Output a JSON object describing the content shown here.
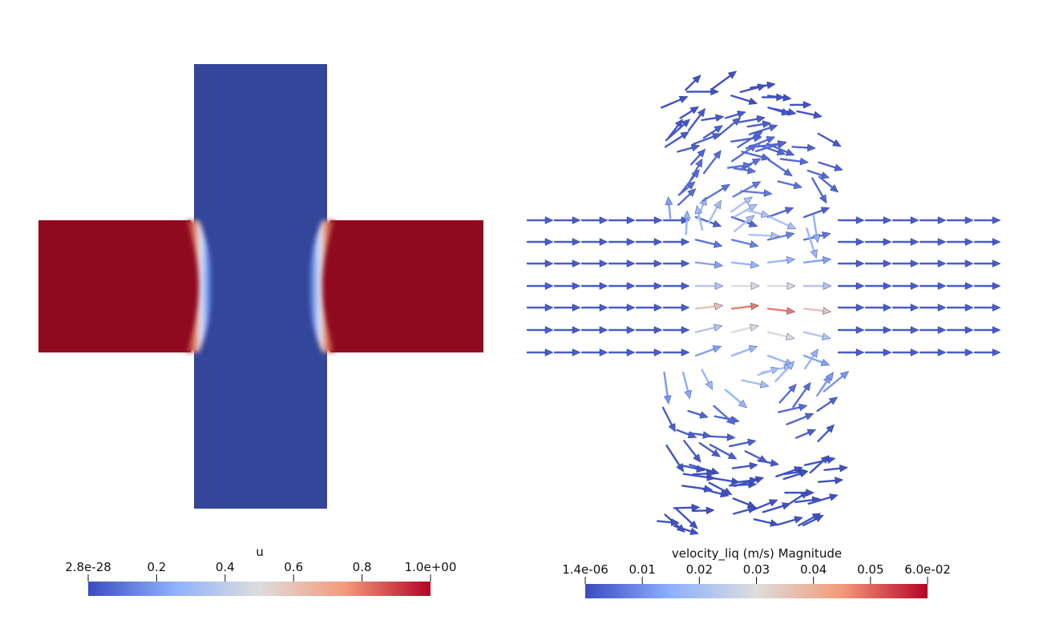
{
  "left_panel": {
    "colorbar": {
      "title": "u",
      "ticks": [
        "2.8e-28",
        "0.2",
        "0.4",
        "0.6",
        "0.8",
        "1.0e+00"
      ],
      "tick_values": [
        0,
        0.2,
        0.4,
        0.6,
        0.8,
        1.0
      ]
    }
  },
  "right_panel": {
    "colorbar": {
      "title": "velocity_liq (m/s) Magnitude",
      "ticks": [
        "1.4e-06",
        "0.01",
        "0.02",
        "0.03",
        "0.04",
        "0.05",
        "6.0e-02"
      ],
      "tick_values": [
        0,
        0.01,
        0.02,
        0.03,
        0.04,
        0.05,
        0.06
      ]
    }
  },
  "colormap": {
    "name": "Cool to Warm",
    "stops": [
      "#3b4cc0",
      "#8db0fe",
      "#dddddd",
      "#f49a7b",
      "#b40426"
    ]
  }
}
